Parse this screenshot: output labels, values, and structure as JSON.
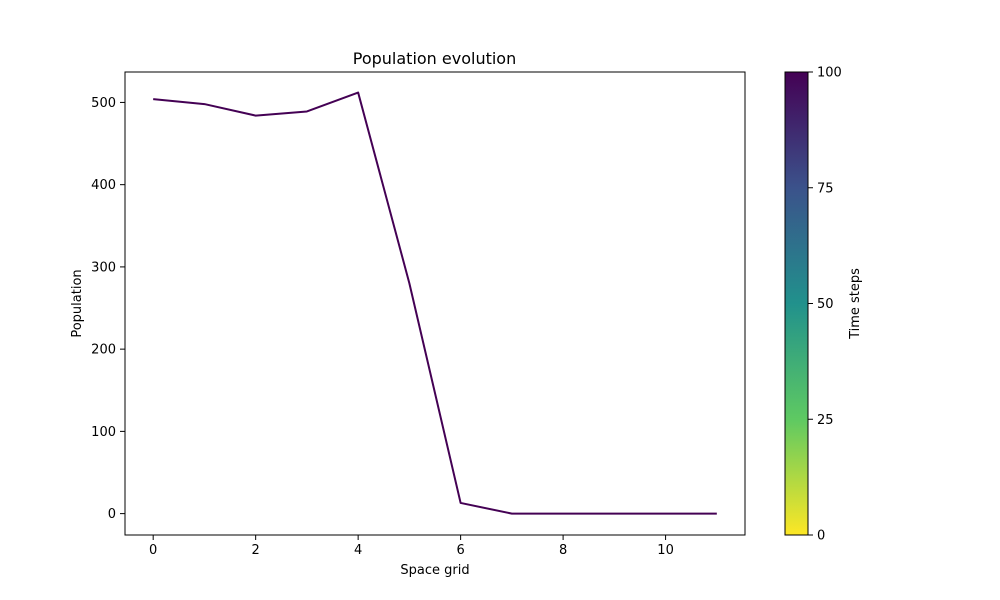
{
  "chart_data": {
    "type": "line",
    "title": "Population evolution",
    "xlabel": "Space grid",
    "ylabel": "Population",
    "xlim": [
      -0.55,
      11.55
    ],
    "ylim": [
      -26,
      537
    ],
    "xticks": [
      0,
      2,
      4,
      6,
      8,
      10
    ],
    "yticks": [
      0,
      100,
      200,
      300,
      400,
      500
    ],
    "grid": false,
    "line_color": "#440154",
    "x": [
      0,
      1,
      2,
      3,
      4,
      5,
      6,
      7,
      8,
      9,
      10,
      11
    ],
    "series": [
      {
        "values": [
          504,
          498,
          484,
          489,
          512,
          280,
          13,
          0,
          0,
          0,
          0,
          0
        ]
      }
    ],
    "colorbar": {
      "label": "Time steps",
      "range": [
        0,
        100
      ],
      "ticks": [
        0,
        25,
        50,
        75,
        100
      ],
      "colormap": "viridis",
      "colors": [
        "#fde725",
        "#5ec962",
        "#21918c",
        "#3b528b",
        "#440154"
      ]
    }
  }
}
